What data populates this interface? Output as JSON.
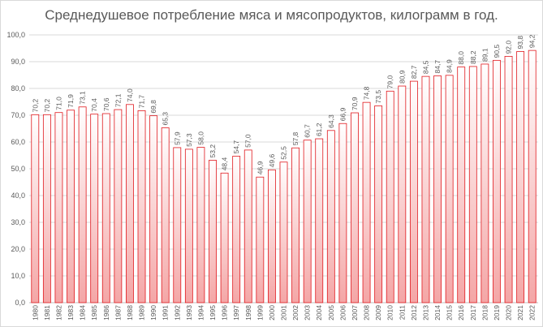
{
  "chart_data": {
    "type": "bar",
    "title": "Среднедушевое потребление мяса и мясопродуктов, килограмм в год.",
    "xlabel": "",
    "ylabel": "",
    "ylim": [
      0,
      100
    ],
    "yticks": [
      "0,0",
      "10,0",
      "20,0",
      "30,0",
      "40,0",
      "50,0",
      "60,0",
      "70,0",
      "80,0",
      "90,0",
      "100,0"
    ],
    "grid": true,
    "legend": "none",
    "bar_fill_top": "#ffffff",
    "bar_fill_bottom": "#f4a6a6",
    "bar_stroke": "#e0191e",
    "categories": [
      "1980",
      "1981",
      "1982",
      "1983",
      "1984",
      "1985",
      "1986",
      "1987",
      "1988",
      "1989",
      "1990",
      "1991",
      "1992",
      "1993",
      "1994",
      "1995",
      "1996",
      "1997",
      "1998",
      "1999",
      "2000",
      "2001",
      "2002",
      "2003",
      "2004",
      "2005",
      "2006",
      "2007",
      "2008",
      "2009",
      "2010",
      "2011",
      "2012",
      "2013",
      "2014",
      "2015",
      "2016",
      "2017",
      "2018",
      "2019",
      "2020",
      "2021",
      "2022"
    ],
    "values": [
      70.2,
      70.2,
      71.0,
      71.9,
      73.1,
      70.4,
      70.6,
      72.1,
      74.0,
      71.7,
      69.8,
      65.3,
      57.9,
      57.3,
      58.0,
      53.2,
      48.4,
      54.7,
      57.0,
      46.9,
      49.6,
      52.5,
      57.8,
      60.7,
      61.2,
      64.3,
      66.9,
      70.9,
      74.8,
      73.5,
      79.0,
      80.9,
      82.7,
      84.5,
      84.7,
      84.9,
      88.0,
      88.2,
      89.1,
      90.5,
      92.0,
      93.8,
      94.2
    ],
    "labels": [
      "70,2",
      "70,2",
      "71,0",
      "71,9",
      "73,1",
      "70,4",
      "70,6",
      "72,1",
      "74,0",
      "71,7",
      "69,8",
      "65,3",
      "57,9",
      "57,3",
      "58,0",
      "53,2",
      "48,4",
      "54,7",
      "57,0",
      "46,9",
      "49,6",
      "52,5",
      "57,8",
      "60,7",
      "61,2",
      "64,3",
      "66,9",
      "70,9",
      "74,8",
      "73,5",
      "79,0",
      "80,9",
      "82,7",
      "84,5",
      "84,7",
      "84,9",
      "88,0",
      "88,2",
      "89,1",
      "90,5",
      "92,0",
      "93,8",
      "94,2"
    ]
  }
}
